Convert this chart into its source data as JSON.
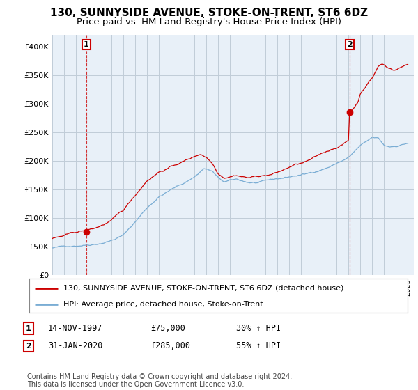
{
  "title": "130, SUNNYSIDE AVENUE, STOKE-ON-TRENT, ST6 6DZ",
  "subtitle": "Price paid vs. HM Land Registry's House Price Index (HPI)",
  "ylim": [
    0,
    420000
  ],
  "yticks": [
    0,
    50000,
    100000,
    150000,
    200000,
    250000,
    300000,
    350000,
    400000
  ],
  "ytick_labels": [
    "£0",
    "£50K",
    "£100K",
    "£150K",
    "£200K",
    "£250K",
    "£300K",
    "£350K",
    "£400K"
  ],
  "xlim_start": 1995.0,
  "xlim_end": 2025.5,
  "sale1_x": 1997.87,
  "sale1_y": 75000,
  "sale2_x": 2020.08,
  "sale2_y": 285000,
  "sale1_label": "1",
  "sale2_label": "2",
  "sale_color": "#cc0000",
  "hpi_color": "#7aadd4",
  "legend_house_label": "130, SUNNYSIDE AVENUE, STOKE-ON-TRENT, ST6 6DZ (detached house)",
  "legend_hpi_label": "HPI: Average price, detached house, Stoke-on-Trent",
  "table_row1": [
    "1",
    "14-NOV-1997",
    "£75,000",
    "30% ↑ HPI"
  ],
  "table_row2": [
    "2",
    "31-JAN-2020",
    "£285,000",
    "55% ↑ HPI"
  ],
  "footer": "Contains HM Land Registry data © Crown copyright and database right 2024.\nThis data is licensed under the Open Government Licence v3.0.",
  "background_color": "#ffffff",
  "chart_bg_color": "#e8f0f8",
  "grid_color": "#c0ccd8",
  "title_fontsize": 11,
  "subtitle_fontsize": 9.5
}
